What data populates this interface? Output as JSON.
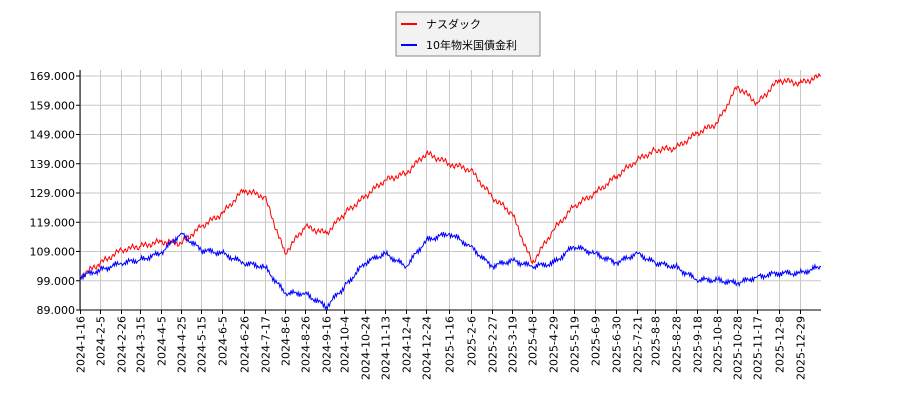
{
  "chart_data": {
    "type": "line",
    "title": "",
    "xlabel": "",
    "ylabel": "",
    "ylim": [
      89,
      169
    ],
    "yticks": [
      "89.000",
      "99.000",
      "109.000",
      "119.000",
      "129.000",
      "139.000",
      "149.000",
      "159.000",
      "169.000"
    ],
    "xticks": [
      "2024-1-16",
      "2024-2-5",
      "2024-2-26",
      "2024-3-15",
      "2024-4-5",
      "2024-4-25",
      "2024-5-15",
      "2024-6-5",
      "2024-6-26",
      "2024-7-17",
      "2024-8-6",
      "2024-8-26",
      "2024-9-16",
      "2024-10-4",
      "2024-10-24",
      "2024-11-13",
      "2024-12-4",
      "2024-12-24",
      "2025-1-16",
      "2025-2-6",
      "2025-2-27",
      "2025-3-19",
      "2025-4-8",
      "2025-4-29",
      "2025-5-19",
      "2025-6-9",
      "2025-6-30",
      "2025-7-21",
      "2025-8-8",
      "2025-8-28",
      "2025-9-18",
      "2025-10-8",
      "2025-10-28",
      "2025-11-17",
      "2025-12-8",
      "2025-12-29"
    ],
    "grid": true,
    "legend": "top-center",
    "x": [
      "2024-1-16",
      "2024-2-5",
      "2024-2-26",
      "2024-3-15",
      "2024-4-5",
      "2024-4-25",
      "2024-5-15",
      "2024-6-5",
      "2024-6-26",
      "2024-7-17",
      "2024-8-6",
      "2024-8-26",
      "2024-9-16",
      "2024-10-4",
      "2024-10-24",
      "2024-11-13",
      "2024-12-4",
      "2024-12-24",
      "2025-1-16",
      "2025-2-6",
      "2025-2-27",
      "2025-3-19",
      "2025-4-8",
      "2025-4-29",
      "2025-5-19",
      "2025-6-9",
      "2025-6-30",
      "2025-7-21",
      "2025-8-8",
      "2025-8-28",
      "2025-9-18",
      "2025-10-8",
      "2025-10-28",
      "2025-11-17",
      "2025-12-8",
      "2025-12-29",
      "2026-1-19"
    ],
    "series": [
      {
        "name": "ナスダック",
        "color": "#ff0000",
        "values": [
          100.4,
          105,
          109.5,
          110.7,
          112.4,
          111.8,
          117.5,
          122,
          130,
          127.7,
          108.4,
          117.5,
          115.2,
          122,
          127.7,
          133.4,
          135.7,
          142.6,
          139,
          136.9,
          127.7,
          122,
          105,
          116.4,
          124.3,
          128.9,
          134.6,
          140.3,
          143.7,
          144.3,
          149.4,
          152.8,
          165.4,
          159.7,
          167.6,
          166.5,
          169
        ]
      },
      {
        "name": "10年物米国債金利",
        "color": "#0000ff",
        "values": [
          100.4,
          102.7,
          105,
          106.1,
          108.4,
          115.2,
          109.5,
          108.4,
          105,
          103.8,
          94.7,
          94.7,
          90.1,
          97,
          105,
          108.4,
          103.8,
          112.9,
          115.2,
          110.7,
          103.8,
          106.1,
          103.8,
          105,
          110.7,
          108.4,
          105,
          108.4,
          105,
          103.8,
          99.3,
          99.3,
          98.1,
          100.4,
          101.6,
          101.6,
          103.8
        ]
      }
    ]
  }
}
